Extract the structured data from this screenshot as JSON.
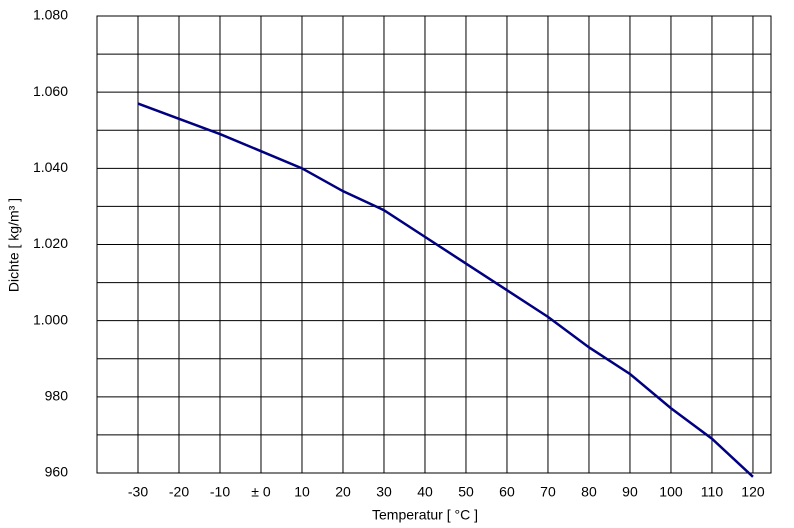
{
  "chart_data": {
    "type": "line",
    "x_label": "Temperatur  [ °C ]",
    "y_label": "Dichte [ kg/m³ ]",
    "x": [
      -30,
      -20,
      -10,
      0,
      10,
      20,
      30,
      40,
      50,
      60,
      70,
      80,
      90,
      100,
      110,
      120
    ],
    "series": [
      {
        "color": "#000080",
        "values": [
          1057,
          1053,
          1049,
          1044.5,
          1040,
          1034,
          1029,
          1022,
          1015,
          1008,
          1001,
          993,
          986,
          977,
          969,
          959
        ]
      }
    ],
    "xlim": [
      -40,
      124.4
    ],
    "xticks": [
      -30,
      -20,
      -10,
      {
        "value": 0,
        "label": "± 0"
      },
      10,
      20,
      30,
      40,
      50,
      60,
      70,
      80,
      90,
      100,
      110,
      120
    ],
    "ylim": [
      960,
      1080
    ],
    "yticks": [
      960,
      980,
      {
        "value": 1000,
        "label": "1.000"
      },
      {
        "value": 1020,
        "label": "1.020"
      },
      {
        "value": 1040,
        "label": "1.040"
      },
      {
        "value": 1060,
        "label": "1.060"
      },
      {
        "value": 1080,
        "label": "1.080"
      }
    ],
    "y_minor_gridlines": [
      970,
      990,
      1010,
      1030,
      1050,
      1070
    ],
    "grid": true
  }
}
